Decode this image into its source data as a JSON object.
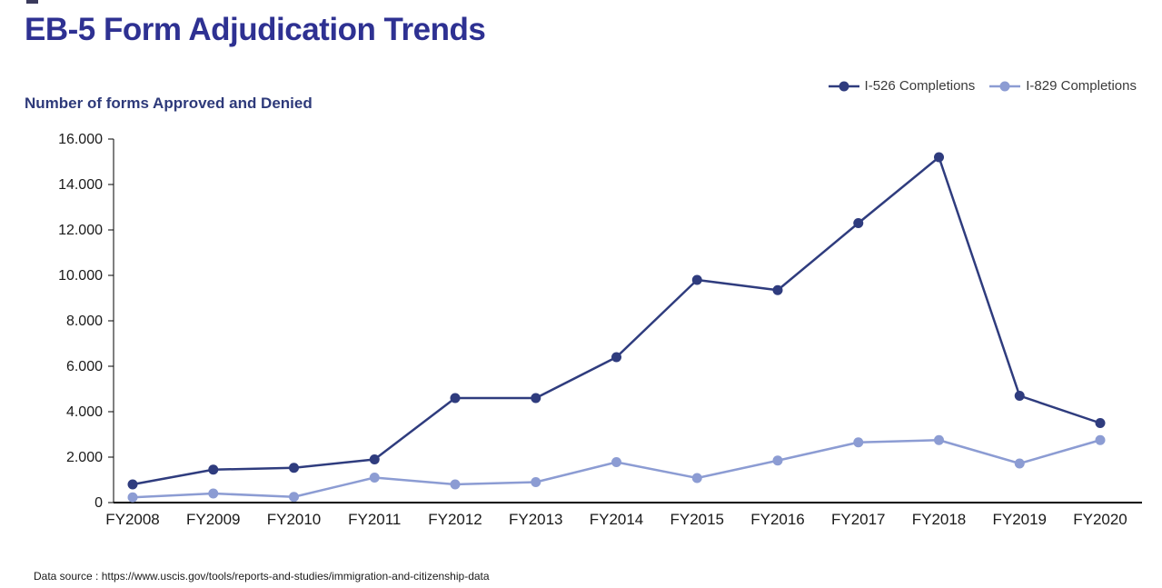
{
  "page": {
    "title": "EB-5 Form Adjudication Trends",
    "subtitle": "Number of forms Approved and Denied",
    "source_note": "Data source : https://www.uscis.gov/tools/reports-and-studies/immigration-and-citizenship-data"
  },
  "colors": {
    "title": "#2e3192",
    "subtitle": "#2e3a7a",
    "axis": "#000000",
    "tick_label": "#1a1a1a",
    "legend_text": "#3a3a3a"
  },
  "chart_data": {
    "type": "line",
    "title": "EB-5 Form Adjudication Trends",
    "subtitle": "Number of forms Approved and Denied",
    "categories": [
      "FY2008",
      "FY2009",
      "FY2010",
      "FY2011",
      "FY2012",
      "FY2013",
      "FY2014",
      "FY2015",
      "FY2016",
      "FY2017",
      "FY2018",
      "FY2019",
      "FY2020"
    ],
    "series": [
      {
        "name": "I-526 Completions",
        "color": "#2f3c7e",
        "values": [
          800,
          1450,
          1530,
          1900,
          4600,
          4600,
          6400,
          9800,
          9350,
          12300,
          15200,
          4700,
          3500
        ]
      },
      {
        "name": "I-829 Completions",
        "color": "#8c9cd3",
        "values": [
          230,
          400,
          250,
          1100,
          800,
          900,
          1780,
          1080,
          1850,
          2650,
          2750,
          1720,
          2750
        ]
      }
    ],
    "xlabel": "",
    "ylabel": "",
    "ylim": [
      0,
      16000
    ],
    "ytick_step": 2000,
    "y_tick_labels": [
      "0",
      "2.000",
      "4.000",
      "6.000",
      "8.000",
      "10.000",
      "12.000",
      "14.000",
      "16.000"
    ],
    "grid": false,
    "legend_position": "top-right"
  }
}
